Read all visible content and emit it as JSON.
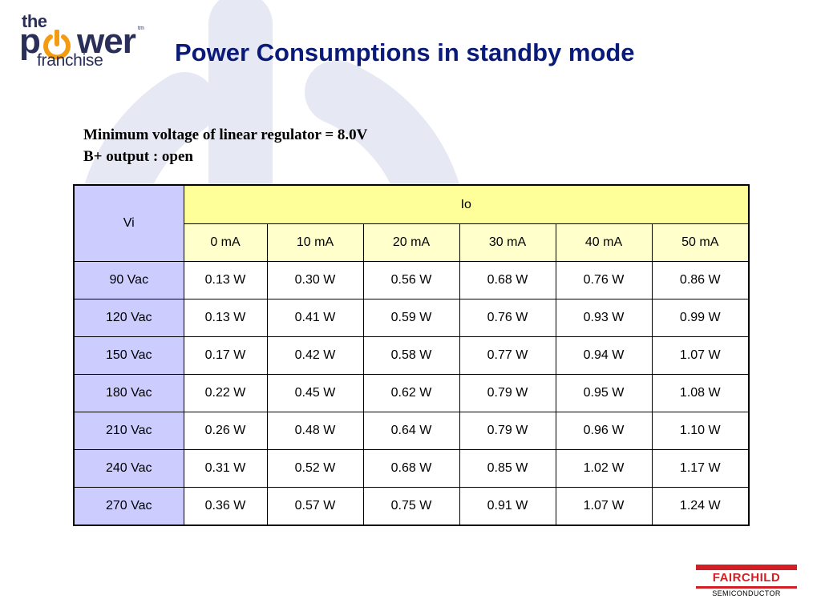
{
  "slide": {
    "logo": {
      "line1": "the",
      "line2_start": "p",
      "line2_end": "wer",
      "tm": "tm",
      "line3": "franchise"
    },
    "title": "Power Consumptions in standby mode",
    "notes": [
      "Minimum voltage of linear regulator = 8.0V",
      "B+ output : open"
    ],
    "table": {
      "row_header": "Vi",
      "col_group_header": "Io",
      "columns": [
        "0 mA",
        "10 mA",
        "20 mA",
        "30 mA",
        "40 mA",
        "50 mA"
      ],
      "rows": [
        {
          "label": "90 Vac",
          "values": [
            "0.13 W",
            "0.30 W",
            "0.56 W",
            "0.68 W",
            "0.76 W",
            "0.86 W"
          ]
        },
        {
          "label": "120 Vac",
          "values": [
            "0.13 W",
            "0.41 W",
            "0.59 W",
            "0.76 W",
            "0.93 W",
            "0.99 W"
          ]
        },
        {
          "label": "150 Vac",
          "values": [
            "0.17 W",
            "0.42 W",
            "0.58 W",
            "0.77 W",
            "0.94 W",
            "1.07 W"
          ]
        },
        {
          "label": "180 Vac",
          "values": [
            "0.22 W",
            "0.45 W",
            "0.62 W",
            "0.79 W",
            "0.95 W",
            "1.08 W"
          ]
        },
        {
          "label": "210 Vac",
          "values": [
            "0.26 W",
            "0.48 W",
            "0.64 W",
            "0.79 W",
            "0.96 W",
            "1.10 W"
          ]
        },
        {
          "label": "240 Vac",
          "values": [
            "0.31 W",
            "0.52 W",
            "0.68 W",
            "0.85 W",
            "1.02 W",
            "1.17 W"
          ]
        },
        {
          "label": "270 Vac",
          "values": [
            "0.36 W",
            "0.57 W",
            "0.75 W",
            "0.91 W",
            "1.07 W",
            "1.24 W"
          ]
        }
      ]
    },
    "footer_logo": {
      "name": "FAIRCHILD",
      "sub": "SEMICONDUCTOR"
    }
  },
  "colors": {
    "title": "#0a1a78",
    "row_header_bg": "#ccccff",
    "io_header_bg": "#ffff99",
    "current_header_bg": "#ffffcc",
    "brand_red": "#d21f26",
    "logo_orange": "#f39c12",
    "watermark": "#e6e9f4"
  },
  "icons": {
    "background_watermark": "power-symbol-icon",
    "logo_o": "power-button-icon"
  }
}
